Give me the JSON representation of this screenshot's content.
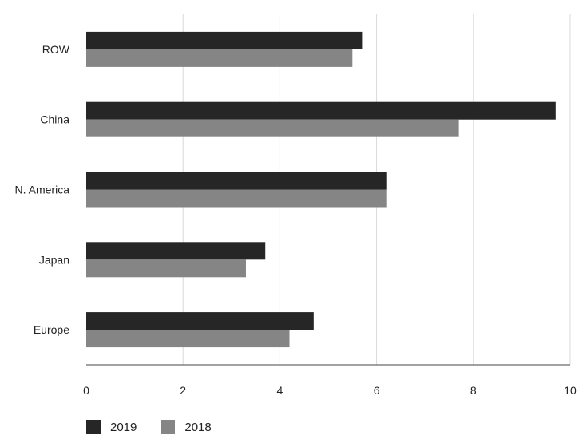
{
  "chart_data": {
    "type": "bar",
    "orientation": "horizontal",
    "categories": [
      "ROW",
      "China",
      "N. America",
      "Japan",
      "Europe"
    ],
    "series": [
      {
        "name": "2019",
        "values": [
          5.7,
          9.7,
          6.2,
          3.7,
          4.7
        ],
        "color": "#262626"
      },
      {
        "name": "2018",
        "values": [
          5.5,
          7.7,
          6.2,
          3.3,
          4.2
        ],
        "color": "#858585"
      }
    ],
    "xlim": [
      0,
      10
    ],
    "xticks": [
      "0",
      "2",
      "4",
      "6",
      "8",
      "10"
    ],
    "grid": true,
    "legend": "bottom-left"
  }
}
